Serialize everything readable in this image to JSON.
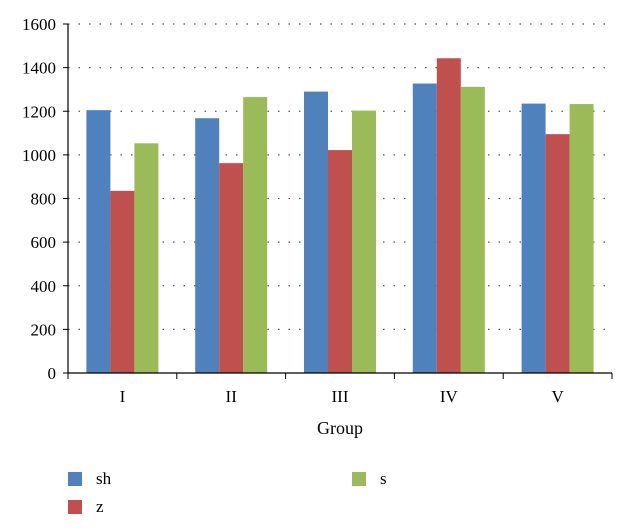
{
  "chart_data": {
    "type": "bar",
    "title": "",
    "xlabel": "Group",
    "ylabel": "",
    "categories": [
      "I",
      "II",
      "III",
      "IV",
      "V"
    ],
    "series": [
      {
        "name": "sh",
        "color": "#4F81BD",
        "values": [
          1205,
          1168,
          1290,
          1327,
          1235
        ]
      },
      {
        "name": "z",
        "color": "#C0504D",
        "values": [
          835,
          962,
          1022,
          1443,
          1095
        ]
      },
      {
        "name": "s",
        "color": "#9BBB59",
        "values": [
          1053,
          1265,
          1203,
          1312,
          1233
        ]
      }
    ],
    "ylim": [
      0,
      1600
    ],
    "yticks": [
      0,
      200,
      400,
      600,
      800,
      1000,
      1200,
      1400,
      1600
    ],
    "grid": "horizontal-dotted",
    "legend_position": "bottom"
  }
}
